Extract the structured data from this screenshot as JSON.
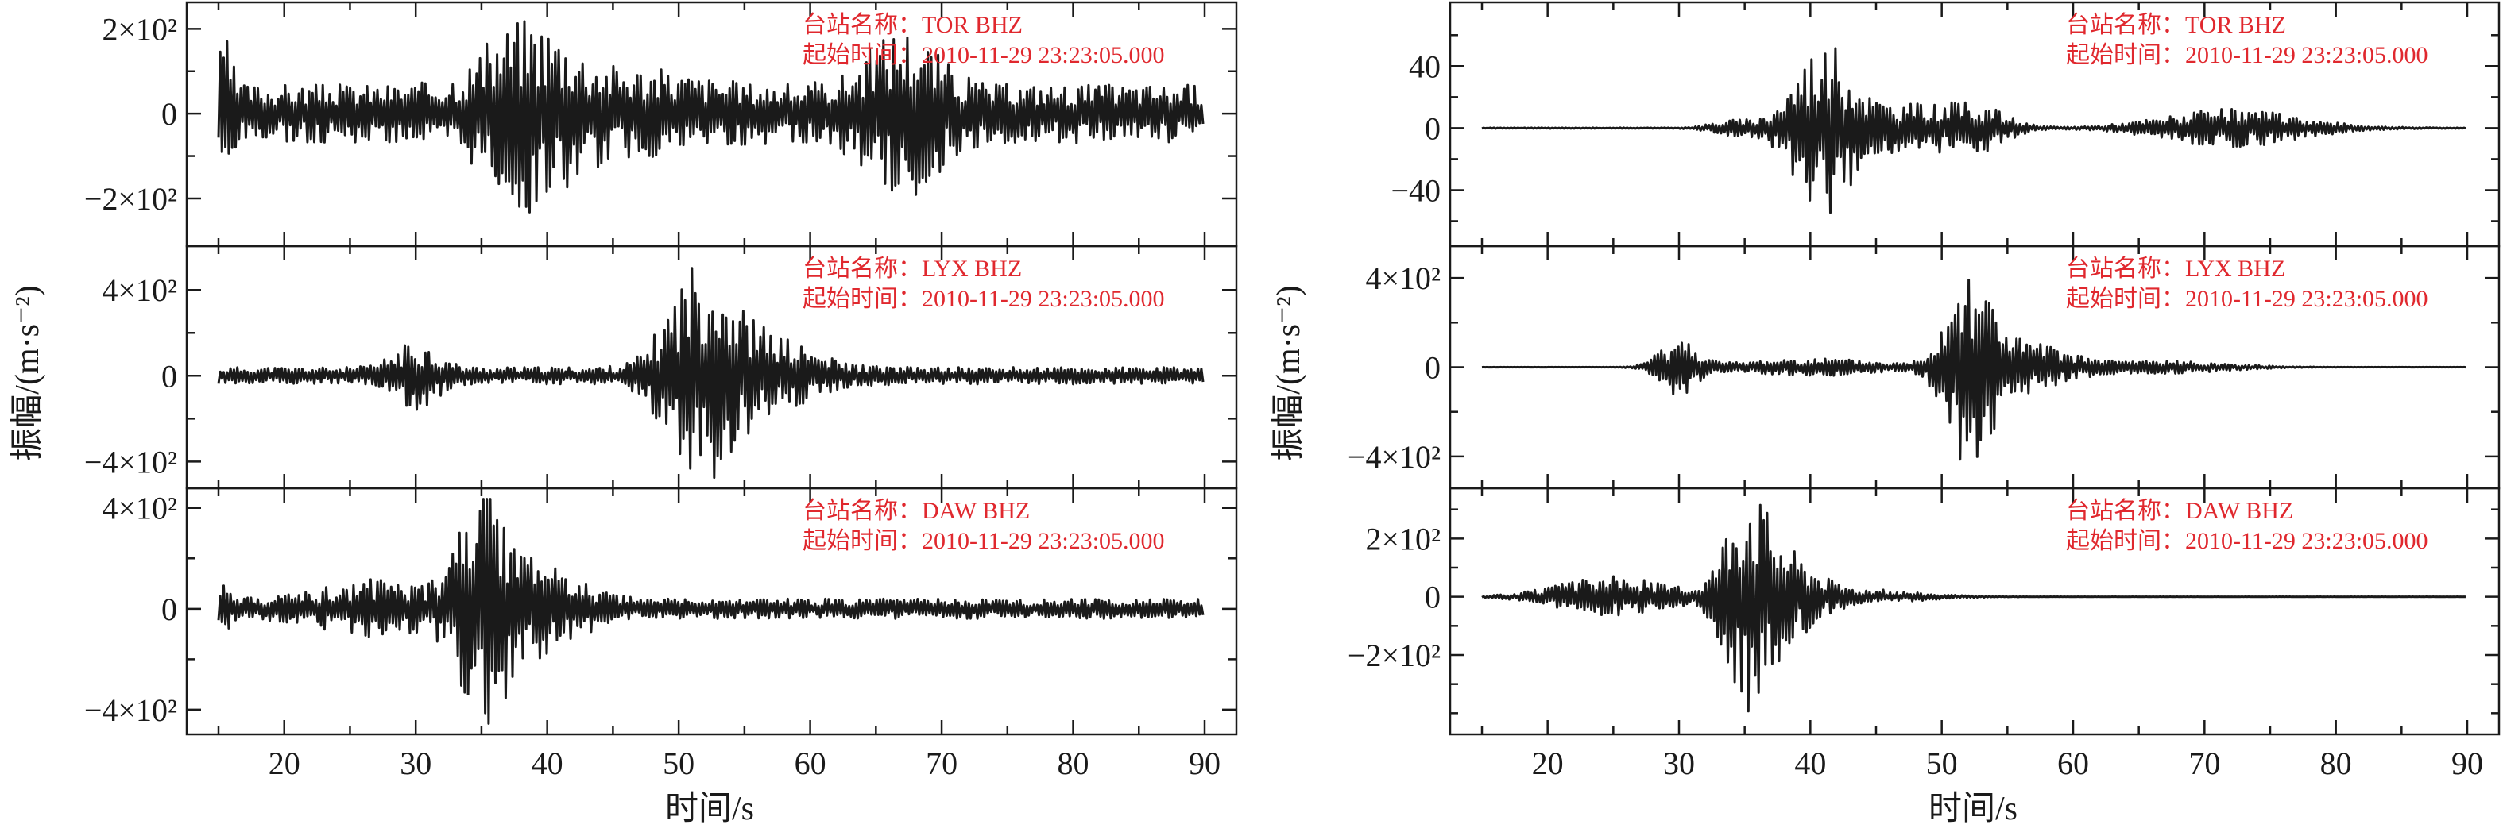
{
  "figure": {
    "left_panel": {
      "xlabel": "时间/s",
      "ylabel": "振幅/(m·s⁻²)"
    },
    "right_panel": {
      "xlabel": "时间/s",
      "ylabel": "振幅/(m·s⁻²)"
    }
  },
  "chart_data": [
    {
      "type": "line",
      "panel": "left",
      "station_label": "台站名称：TOR  BHZ",
      "start_label": "起始时间：2010-11-29 23:23:05.000",
      "xlim": [
        15,
        90
      ],
      "ylim": [
        -290,
        240
      ],
      "x_ticks": [
        "20",
        "30",
        "40",
        "50",
        "60",
        "70",
        "80",
        "90"
      ],
      "y_ticks": [
        {
          "value": 200,
          "label": "2×10²"
        },
        {
          "value": 0,
          "label": "0"
        },
        {
          "value": -200,
          "label": "−2×10²"
        }
      ],
      "show_xticks": false,
      "envelope": {
        "start": 15,
        "end": 90,
        "base": 70,
        "bursts": [
          {
            "t": 15.5,
            "amp": 110,
            "w": 0.5
          },
          {
            "t": 38.5,
            "amp": 160,
            "w": 3
          },
          {
            "t": 47,
            "amp": 40,
            "w": 4
          },
          {
            "t": 67,
            "amp": 140,
            "w": 2.5
          }
        ],
        "seed": 3
      }
    },
    {
      "type": "line",
      "panel": "left",
      "station_label": "台站名称：LYX  BHZ",
      "start_label": "起始时间：2010-11-29 23:23:05.000",
      "xlim": [
        15,
        90
      ],
      "ylim": [
        -480,
        560
      ],
      "x_ticks": [
        "20",
        "30",
        "40",
        "50",
        "60",
        "70",
        "80",
        "90"
      ],
      "y_ticks": [
        {
          "value": 400,
          "label": "4×10²"
        },
        {
          "value": 0,
          "label": "0"
        },
        {
          "value": -400,
          "label": "−4×10²"
        }
      ],
      "show_xticks": false,
      "envelope": {
        "start": 15,
        "end": 90,
        "base": 40,
        "bursts": [
          {
            "t": 30,
            "amp": 120,
            "w": 1.6
          },
          {
            "t": 51.5,
            "amp": 440,
            "w": 2.2
          },
          {
            "t": 56,
            "amp": 160,
            "w": 3.5
          }
        ],
        "seed": 11
      }
    },
    {
      "type": "line",
      "panel": "left",
      "station_label": "台站名称：DAW  BHZ",
      "start_label": "起始时间：2010-11-29 23:23:05.000",
      "xlim": [
        15,
        90
      ],
      "ylim": [
        -460,
        440
      ],
      "x_ticks": [
        "20",
        "30",
        "40",
        "50",
        "60",
        "70",
        "80",
        "90"
      ],
      "y_ticks": [
        {
          "value": 400,
          "label": "4×10²"
        },
        {
          "value": 0,
          "label": "0"
        },
        {
          "value": -400,
          "label": "−4×10²"
        }
      ],
      "show_xticks": true,
      "envelope": {
        "start": 15,
        "end": 90,
        "base": 40,
        "bursts": [
          {
            "t": 15.3,
            "amp": 80,
            "w": 0.4
          },
          {
            "t": 27,
            "amp": 80,
            "w": 4
          },
          {
            "t": 35,
            "amp": 400,
            "w": 1.6
          },
          {
            "t": 39,
            "amp": 150,
            "w": 3
          }
        ],
        "seed": 21
      }
    },
    {
      "type": "line",
      "panel": "right",
      "station_label": "台站名称：TOR  BHZ",
      "start_label": "起始时间：2010-11-29 23:23:05.000",
      "xlim": [
        15,
        90
      ],
      "ylim": [
        -70,
        75
      ],
      "x_ticks": [
        "20",
        "30",
        "40",
        "50",
        "60",
        "70",
        "80",
        "90"
      ],
      "y_ticks": [
        {
          "value": 40,
          "label": "40"
        },
        {
          "value": 0,
          "label": "0"
        },
        {
          "value": -40,
          "label": "−40"
        }
      ],
      "show_xticks": false,
      "envelope": {
        "start": 15,
        "end": 90,
        "base": 0.3,
        "bursts": [
          {
            "t": 34,
            "amp": 5,
            "w": 1.5
          },
          {
            "t": 41,
            "amp": 55,
            "w": 2.2
          },
          {
            "t": 48,
            "amp": 15,
            "w": 3
          },
          {
            "t": 53,
            "amp": 12,
            "w": 2
          },
          {
            "t": 72,
            "amp": 12,
            "w": 5
          }
        ],
        "seed": 31
      }
    },
    {
      "type": "line",
      "panel": "right",
      "station_label": "台站名称：LYX  BHZ",
      "start_label": "起始时间：2010-11-29 23:23:05.000",
      "xlim": [
        15,
        90
      ],
      "ylim": [
        -500,
        500
      ],
      "x_ticks": [
        "20",
        "30",
        "40",
        "50",
        "60",
        "70",
        "80",
        "90"
      ],
      "y_ticks": [
        {
          "value": 400,
          "label": "4×10²"
        },
        {
          "value": 0,
          "label": "0"
        },
        {
          "value": -400,
          "label": "−4×10²"
        }
      ],
      "show_xticks": false,
      "envelope": {
        "start": 15,
        "end": 90,
        "base": 0.5,
        "bursts": [
          {
            "t": 30,
            "amp": 130,
            "w": 1.4
          },
          {
            "t": 40,
            "amp": 40,
            "w": 5
          },
          {
            "t": 52,
            "amp": 440,
            "w": 1.6
          },
          {
            "t": 56,
            "amp": 110,
            "w": 3
          },
          {
            "t": 66,
            "amp": 30,
            "w": 5
          }
        ],
        "seed": 41
      }
    },
    {
      "type": "line",
      "panel": "right",
      "station_label": "台站名称：DAW  BHZ",
      "start_label": "起始时间：2010-11-29 23:23:05.000",
      "xlim": [
        15,
        90
      ],
      "ylim": [
        -440,
        340
      ],
      "x_ticks": [
        "20",
        "30",
        "40",
        "50",
        "60",
        "70",
        "80",
        "90"
      ],
      "y_ticks": [
        {
          "value": 200,
          "label": "2×10²"
        },
        {
          "value": 0,
          "label": "0"
        },
        {
          "value": -200,
          "label": "−2×10²"
        }
      ],
      "show_xticks": true,
      "envelope": {
        "start": 15,
        "end": 90,
        "base": 0.5,
        "bursts": [
          {
            "t": 25,
            "amp": 70,
            "w": 4
          },
          {
            "t": 35,
            "amp": 340,
            "w": 1.5
          },
          {
            "t": 38,
            "amp": 150,
            "w": 2.2
          },
          {
            "t": 44,
            "amp": 25,
            "w": 4
          }
        ],
        "seed": 51
      }
    }
  ]
}
